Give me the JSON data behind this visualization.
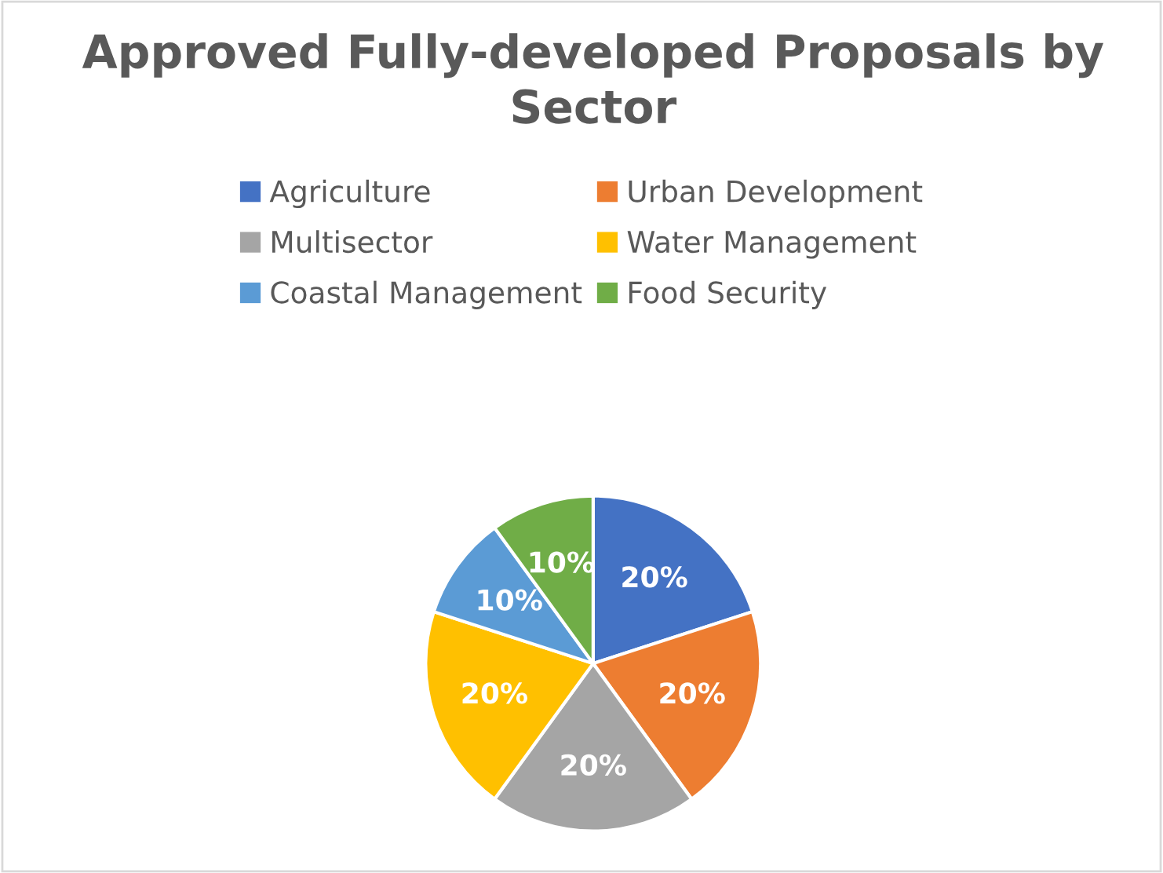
{
  "chart_data": {
    "type": "pie",
    "title": "Approved Fully-developed Proposals by Sector",
    "categories": [
      "Agriculture",
      "Urban Development",
      "Multisector",
      "Water Management",
      "Coastal Management",
      "Food Security"
    ],
    "values": [
      20,
      20,
      20,
      20,
      10,
      10
    ],
    "colors": [
      "#4472c4",
      "#ed7d31",
      "#a5a5a5",
      "#ffc000",
      "#5b9bd5",
      "#70ad47"
    ],
    "value_labels": [
      "20%",
      "20%",
      "20%",
      "20%",
      "10%",
      "10%"
    ],
    "legend": "top"
  }
}
